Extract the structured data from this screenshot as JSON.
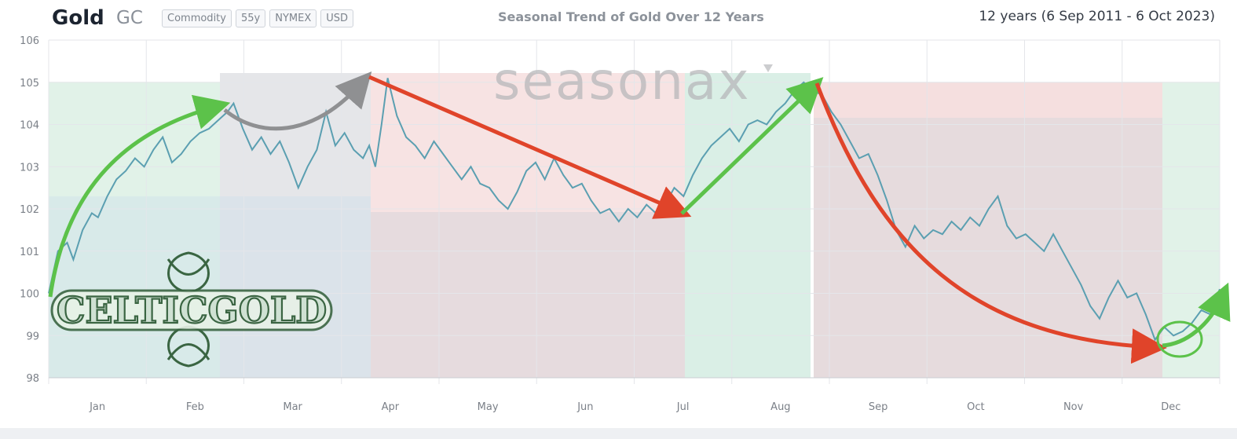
{
  "header": {
    "title": "Gold",
    "ticker": "GC",
    "badges": [
      "Commodity",
      "55y",
      "NYMEX",
      "USD"
    ],
    "chart_title": "Seasonal Trend of Gold Over 12 Years",
    "range": "12 years (6 Sep 2011 - 6 Oct 2023)"
  },
  "watermark": "seasonax",
  "logo": "CELTICGOLD",
  "colors": {
    "line": "#5b9fb1",
    "bullish": "#5cc24a",
    "bearish": "#e0442a",
    "neutral": "#8f9092",
    "band_green": "#d7ede0",
    "band_red": "#f3d7d7",
    "band_gray": "#d9d9dd"
  },
  "chart_data": {
    "type": "line",
    "title": "Seasonal Trend of Gold Over 12 Years",
    "xlabel": "",
    "ylabel": "",
    "ylim": [
      98,
      106
    ],
    "yticks": [
      98,
      99,
      100,
      101,
      102,
      103,
      104,
      105,
      106
    ],
    "months": [
      "Jan",
      "Feb",
      "Mar",
      "Apr",
      "May",
      "Jun",
      "Jul",
      "Aug",
      "Sep",
      "Oct",
      "Nov",
      "Dec"
    ],
    "grid": true,
    "series": [
      {
        "values": [
          [
            0,
            100.0
          ],
          [
            3,
            101.0
          ],
          [
            6,
            101.2
          ],
          [
            8,
            100.8
          ],
          [
            11,
            101.5
          ],
          [
            14,
            101.9
          ],
          [
            16,
            101.8
          ],
          [
            19,
            102.3
          ],
          [
            22,
            102.7
          ],
          [
            25,
            102.9
          ],
          [
            28,
            103.2
          ],
          [
            31,
            103.0
          ],
          [
            34,
            103.4
          ],
          [
            37,
            103.7
          ],
          [
            40,
            103.1
          ],
          [
            43,
            103.3
          ],
          [
            46,
            103.6
          ],
          [
            49,
            103.8
          ],
          [
            52,
            103.9
          ],
          [
            55,
            104.1
          ],
          [
            58,
            104.3
          ],
          [
            60,
            104.5
          ],
          [
            63,
            103.9
          ],
          [
            66,
            103.4
          ],
          [
            69,
            103.7
          ],
          [
            72,
            103.3
          ],
          [
            75,
            103.6
          ],
          [
            78,
            103.1
          ],
          [
            81,
            102.5
          ],
          [
            84,
            103.0
          ],
          [
            87,
            103.4
          ],
          [
            90,
            104.3
          ],
          [
            93,
            103.5
          ],
          [
            96,
            103.8
          ],
          [
            99,
            103.4
          ],
          [
            102,
            103.2
          ],
          [
            104,
            103.5
          ],
          [
            106,
            103.0
          ],
          [
            108,
            104.0
          ],
          [
            110,
            105.1
          ],
          [
            113,
            104.2
          ],
          [
            116,
            103.7
          ],
          [
            119,
            103.5
          ],
          [
            122,
            103.2
          ],
          [
            125,
            103.6
          ],
          [
            128,
            103.3
          ],
          [
            131,
            103.0
          ],
          [
            134,
            102.7
          ],
          [
            137,
            103.0
          ],
          [
            140,
            102.6
          ],
          [
            143,
            102.5
          ],
          [
            146,
            102.2
          ],
          [
            149,
            102.0
          ],
          [
            152,
            102.4
          ],
          [
            155,
            102.9
          ],
          [
            158,
            103.1
          ],
          [
            161,
            102.7
          ],
          [
            164,
            103.2
          ],
          [
            167,
            102.8
          ],
          [
            170,
            102.5
          ],
          [
            173,
            102.6
          ],
          [
            176,
            102.2
          ],
          [
            179,
            101.9
          ],
          [
            182,
            102.0
          ],
          [
            185,
            101.7
          ],
          [
            188,
            102.0
          ],
          [
            191,
            101.8
          ],
          [
            194,
            102.1
          ],
          [
            197,
            101.9
          ],
          [
            200,
            102.1
          ],
          [
            203,
            102.5
          ],
          [
            206,
            102.3
          ],
          [
            209,
            102.8
          ],
          [
            212,
            103.2
          ],
          [
            215,
            103.5
          ],
          [
            218,
            103.7
          ],
          [
            221,
            103.9
          ],
          [
            224,
            103.6
          ],
          [
            227,
            104.0
          ],
          [
            230,
            104.1
          ],
          [
            233,
            104.0
          ],
          [
            236,
            104.3
          ],
          [
            239,
            104.5
          ],
          [
            242,
            104.8
          ],
          [
            245,
            105.0
          ],
          [
            248,
            104.8
          ],
          [
            251,
            104.7
          ],
          [
            254,
            104.3
          ],
          [
            257,
            104.0
          ],
          [
            260,
            103.6
          ],
          [
            263,
            103.2
          ],
          [
            266,
            103.3
          ],
          [
            269,
            102.8
          ],
          [
            272,
            102.2
          ],
          [
            275,
            101.5
          ],
          [
            278,
            101.1
          ],
          [
            281,
            101.6
          ],
          [
            284,
            101.3
          ],
          [
            287,
            101.5
          ],
          [
            290,
            101.4
          ],
          [
            293,
            101.7
          ],
          [
            296,
            101.5
          ],
          [
            299,
            101.8
          ],
          [
            302,
            101.6
          ],
          [
            305,
            102.0
          ],
          [
            308,
            102.3
          ],
          [
            311,
            101.6
          ],
          [
            314,
            101.3
          ],
          [
            317,
            101.4
          ],
          [
            320,
            101.2
          ],
          [
            323,
            101.0
          ],
          [
            326,
            101.4
          ],
          [
            329,
            101.0
          ],
          [
            332,
            100.6
          ],
          [
            335,
            100.2
          ],
          [
            338,
            99.7
          ],
          [
            341,
            99.4
          ],
          [
            344,
            99.9
          ],
          [
            347,
            100.3
          ],
          [
            350,
            99.9
          ],
          [
            353,
            100.0
          ],
          [
            356,
            99.5
          ],
          [
            359,
            98.9
          ],
          [
            362,
            99.2
          ],
          [
            365,
            99.0
          ],
          [
            368,
            99.1
          ],
          [
            371,
            99.3
          ],
          [
            374,
            99.6
          ],
          [
            377,
            99.5
          ],
          [
            380,
            100.1
          ]
        ]
      }
    ]
  }
}
